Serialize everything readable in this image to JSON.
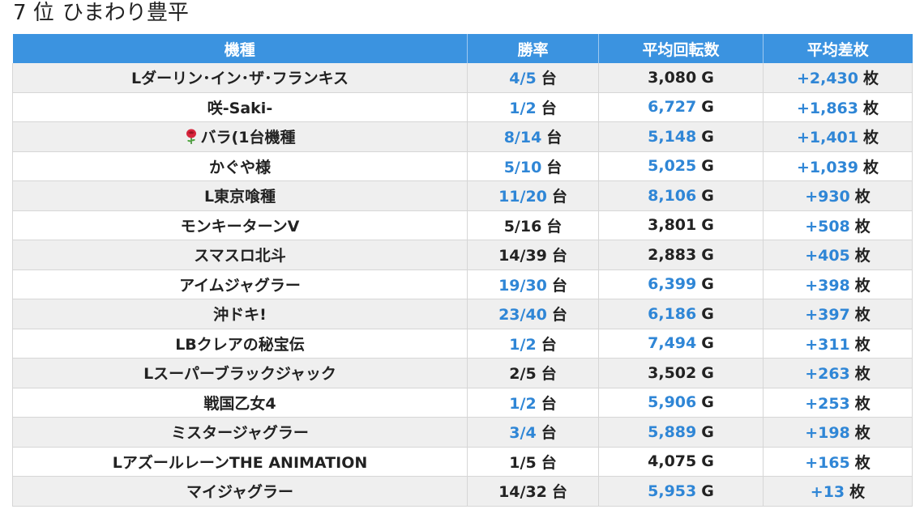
{
  "heading": {
    "rank": "7 位",
    "store": "ひまわり豊平"
  },
  "table": {
    "columns": [
      "機種",
      "勝率",
      "平均回転数",
      "平均差枚"
    ],
    "units": {
      "win": "台",
      "spin": "G",
      "diff": "枚"
    },
    "rows": [
      {
        "machine": "Lダーリン･イン･ザ･フランキス",
        "win": "4/5",
        "win_color": "blue",
        "spin": "3,080",
        "spin_color": "plain",
        "diff": "+2,430",
        "icon": ""
      },
      {
        "machine": "咲-Saki-",
        "win": "1/2",
        "win_color": "blue",
        "spin": "6,727",
        "spin_color": "blue",
        "diff": "+1,863",
        "icon": ""
      },
      {
        "machine": "バラ(1台機種",
        "win": "8/14",
        "win_color": "blue",
        "spin": "5,148",
        "spin_color": "blue",
        "diff": "+1,401",
        "icon": "rose-icon"
      },
      {
        "machine": "かぐや様",
        "win": "5/10",
        "win_color": "blue",
        "spin": "5,025",
        "spin_color": "blue",
        "diff": "+1,039",
        "icon": ""
      },
      {
        "machine": "L東京喰種",
        "win": "11/20",
        "win_color": "blue",
        "spin": "8,106",
        "spin_color": "blue",
        "diff": "+930",
        "icon": ""
      },
      {
        "machine": "モンキーターンV",
        "win": "5/16",
        "win_color": "plain",
        "spin": "3,801",
        "spin_color": "plain",
        "diff": "+508",
        "icon": ""
      },
      {
        "machine": "スマスロ北斗",
        "win": "14/39",
        "win_color": "plain",
        "spin": "2,883",
        "spin_color": "plain",
        "diff": "+405",
        "icon": ""
      },
      {
        "machine": "アイムジャグラー",
        "win": "19/30",
        "win_color": "blue",
        "spin": "6,399",
        "spin_color": "blue",
        "diff": "+398",
        "icon": ""
      },
      {
        "machine": "沖ドキ!",
        "win": "23/40",
        "win_color": "blue",
        "spin": "6,186",
        "spin_color": "blue",
        "diff": "+397",
        "icon": ""
      },
      {
        "machine": "LBクレアの秘宝伝",
        "win": "1/2",
        "win_color": "blue",
        "spin": "7,494",
        "spin_color": "blue",
        "diff": "+311",
        "icon": ""
      },
      {
        "machine": "Lスーパーブラックジャック",
        "win": "2/5",
        "win_color": "plain",
        "spin": "3,502",
        "spin_color": "plain",
        "diff": "+263",
        "icon": ""
      },
      {
        "machine": "戦国乙女4",
        "win": "1/2",
        "win_color": "blue",
        "spin": "5,906",
        "spin_color": "blue",
        "diff": "+253",
        "icon": ""
      },
      {
        "machine": "ミスタージャグラー",
        "win": "3/4",
        "win_color": "blue",
        "spin": "5,889",
        "spin_color": "blue",
        "diff": "+198",
        "icon": ""
      },
      {
        "machine": "LアズールレーンTHE ANIMATION",
        "win": "1/5",
        "win_color": "plain",
        "spin": "4,075",
        "spin_color": "plain",
        "diff": "+165",
        "icon": ""
      },
      {
        "machine": "マイジャグラー",
        "win": "14/32",
        "win_color": "plain",
        "spin": "5,953",
        "spin_color": "blue",
        "diff": "+13",
        "icon": ""
      }
    ]
  },
  "colors": {
    "header_bg": "#3b93e0",
    "accent_blue": "#2f86d6",
    "row_alt": "#efefef"
  }
}
